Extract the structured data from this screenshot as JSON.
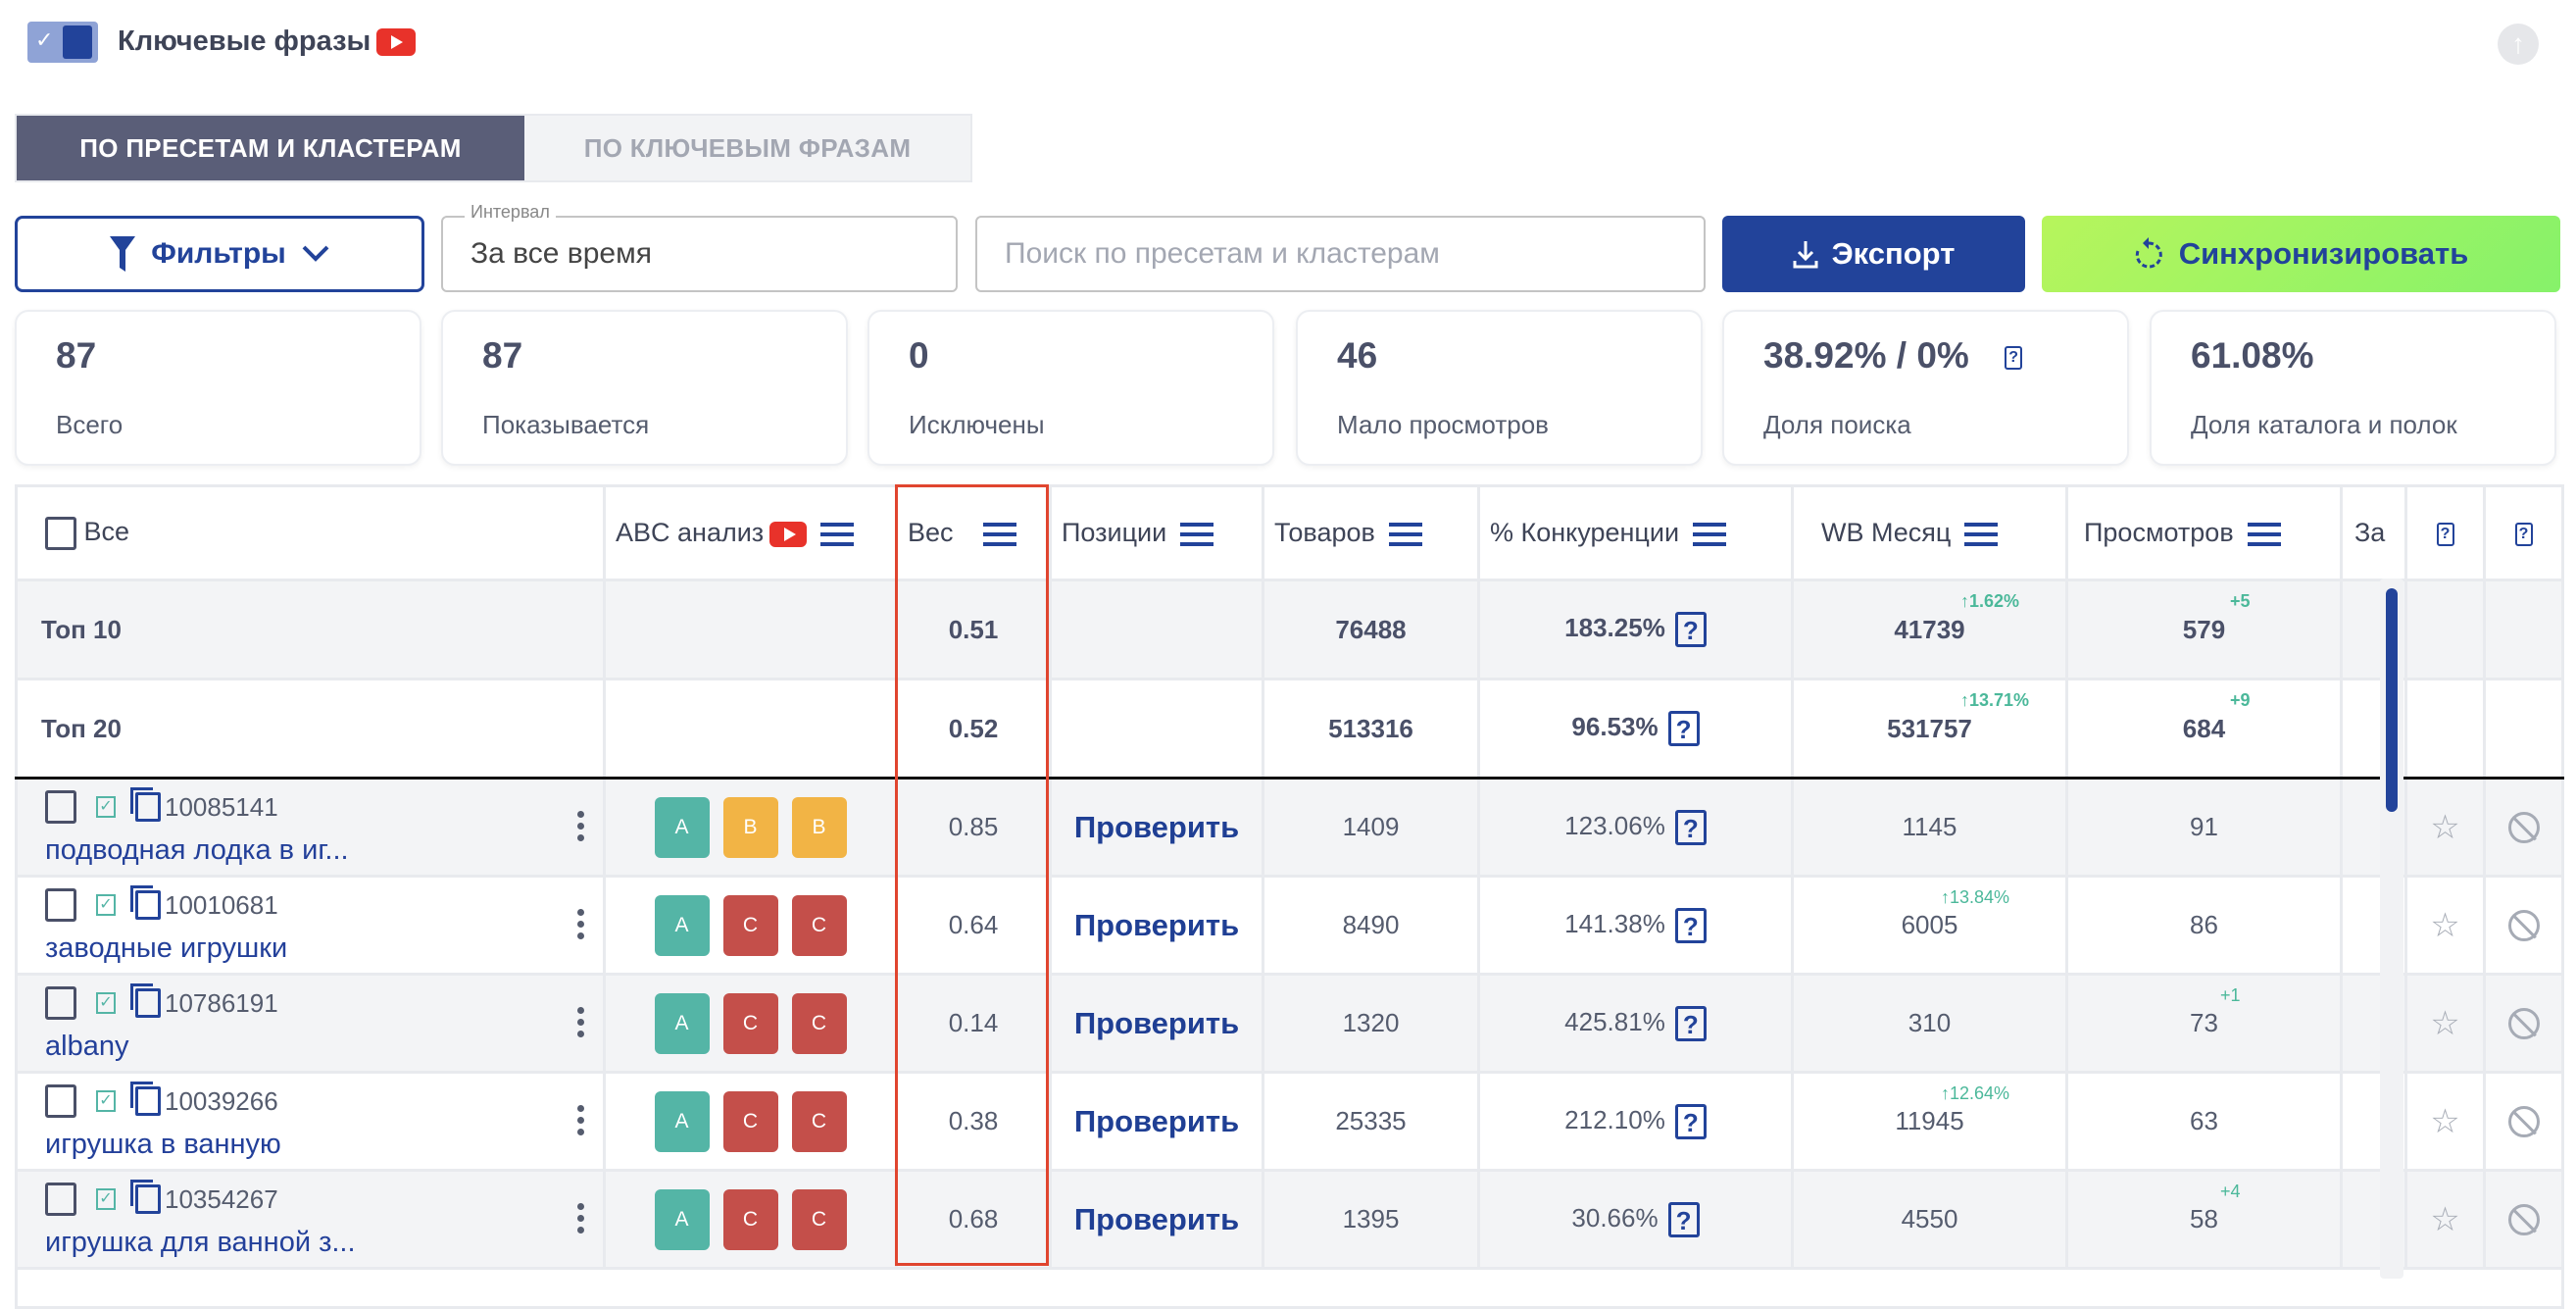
{
  "header": {
    "title": "Ключевые фразы",
    "toggle_on": true,
    "video_icon": "youtube-icon",
    "scroll_top_icon": "arrow-up-icon"
  },
  "tabs": [
    {
      "label": "ПО ПРЕСЕТАМ И КЛАСТЕРАМ",
      "active": true
    },
    {
      "label": "ПО КЛЮЧЕВЫМ ФРАЗАМ",
      "active": false
    }
  ],
  "toolbar": {
    "filters_label": "Фильтры",
    "interval_label": "Интервал",
    "interval_value": "За все время",
    "search_placeholder": "Поиск по пресетам и кластерам",
    "export_label": "Экспорт",
    "sync_label": "Синхронизировать"
  },
  "stats": [
    {
      "value": "87",
      "label": "Всего"
    },
    {
      "value": "87",
      "label": "Показывается"
    },
    {
      "value": "0",
      "label": "Исключены"
    },
    {
      "value": "46",
      "label": "Мало просмотров"
    },
    {
      "value": "38.92% / 0%",
      "label": "Доля поиска",
      "help": true
    },
    {
      "value": "61.08%",
      "label": "Доля каталога и полок"
    }
  ],
  "table": {
    "headers": {
      "all": "Все",
      "abc": "ABC анализ",
      "weight": "Вес",
      "positions": "Позиции",
      "goods": "Товаров",
      "competition": "% Конкуренции",
      "wb_month": "WB Месяц",
      "views": "Просмотров",
      "truncated": "За"
    },
    "summary": [
      {
        "label": "Топ 10",
        "weight": "0.51",
        "goods": "76488",
        "competition": "183.25%",
        "wb_month": "41739",
        "wb_delta": "↑1.62%",
        "views": "579",
        "views_delta": "+5"
      },
      {
        "label": "Топ 20",
        "weight": "0.52",
        "goods": "513316",
        "competition": "96.53%",
        "wb_month": "531757",
        "wb_delta": "↑13.71%",
        "views": "684",
        "views_delta": "+9"
      }
    ],
    "check_label": "Проверить",
    "rows": [
      {
        "id": "10085141",
        "name": "подводная лодка в иг...",
        "abc": [
          "A",
          "B",
          "B"
        ],
        "weight": "0.85",
        "goods": "1409",
        "competition": "123.06%",
        "wb_month": "1145",
        "wb_delta": "",
        "views": "91",
        "views_delta": ""
      },
      {
        "id": "10010681",
        "name": "заводные игрушки",
        "abc": [
          "A",
          "C",
          "C"
        ],
        "weight": "0.64",
        "goods": "8490",
        "competition": "141.38%",
        "wb_month": "6005",
        "wb_delta": "↑13.84%",
        "views": "86",
        "views_delta": ""
      },
      {
        "id": "10786191",
        "name": "albany",
        "abc": [
          "A",
          "C",
          "C"
        ],
        "weight": "0.14",
        "goods": "1320",
        "competition": "425.81%",
        "wb_month": "310",
        "wb_delta": "",
        "views": "73",
        "views_delta": "+1"
      },
      {
        "id": "10039266",
        "name": "игрушка в ванную",
        "abc": [
          "A",
          "C",
          "C"
        ],
        "weight": "0.38",
        "goods": "25335",
        "competition": "212.10%",
        "wb_month": "11945",
        "wb_delta": "↑12.64%",
        "views": "63",
        "views_delta": ""
      },
      {
        "id": "10354267",
        "name": "игрушка для ванной з...",
        "abc": [
          "A",
          "C",
          "C"
        ],
        "weight": "0.68",
        "goods": "1395",
        "competition": "30.66%",
        "wb_month": "4550",
        "wb_delta": "",
        "views": "58",
        "views_delta": "+4"
      }
    ]
  },
  "colors": {
    "primary": "#22439a",
    "badge_A": "#54b5a6",
    "badge_B": "#f2b445",
    "badge_C": "#c44f4a",
    "delta": "#4bb89a",
    "highlight": "#e0452f",
    "tab_active": "#5a5e78"
  }
}
